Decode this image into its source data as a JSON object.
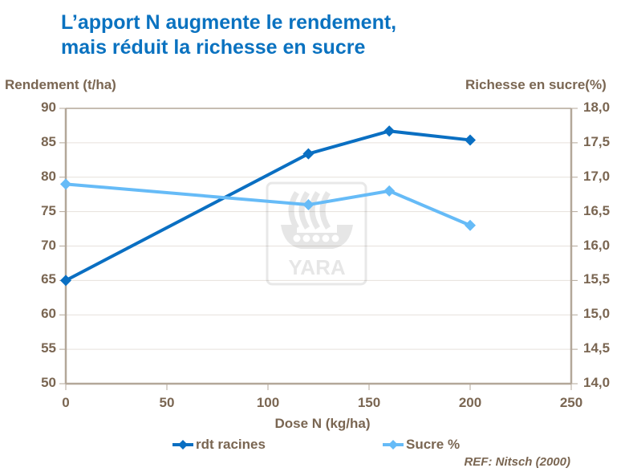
{
  "title": {
    "line1": "L’apport N augmente le rendement,",
    "line2": "mais réduit la richesse en sucre"
  },
  "axes": {
    "y_left_label": "Rendement (t/ha)",
    "y_right_label": "Richesse en sucre(%)",
    "x_label": "Dose N (kg/ha)",
    "y_left_ticks": [
      "90",
      "85",
      "80",
      "75",
      "70",
      "65",
      "60",
      "55",
      "50"
    ],
    "y_right_ticks": [
      "18,0",
      "17,5",
      "17,0",
      "16,5",
      "16,0",
      "15,5",
      "15,0",
      "14,5",
      "14,0"
    ],
    "x_ticks": [
      "0",
      "50",
      "100",
      "150",
      "200",
      "250"
    ]
  },
  "legend": {
    "series1": "rdt racines",
    "series2": "Sucre %"
  },
  "reference": "REF: Nitsch (2000)",
  "watermark": "YARA",
  "colors": {
    "rdt": "#0a6fc2",
    "sucre": "#66bbf7",
    "axis": "#b3a799",
    "text": "#7a6652",
    "title": "#0a72c0"
  },
  "chart_data": {
    "type": "line",
    "title": "L’apport N augmente le rendement, mais réduit la richesse en sucre",
    "xlabel": "Dose N (kg/ha)",
    "ylabel": "Rendement (t/ha)",
    "y2label": "Richesse en sucre(%)",
    "xlim": [
      0,
      250
    ],
    "ylim": [
      50,
      90
    ],
    "y2lim": [
      14.0,
      18.0
    ],
    "grid": true,
    "legend_position": "bottom",
    "series": [
      {
        "name": "rdt racines",
        "axis": "left",
        "x": [
          0,
          120,
          160,
          200
        ],
        "values": [
          65,
          83.4,
          86.7,
          85.4
        ]
      },
      {
        "name": "Sucre %",
        "axis": "right",
        "x": [
          0,
          120,
          160,
          200
        ],
        "values": [
          16.9,
          16.6,
          16.8,
          16.3
        ]
      }
    ]
  }
}
